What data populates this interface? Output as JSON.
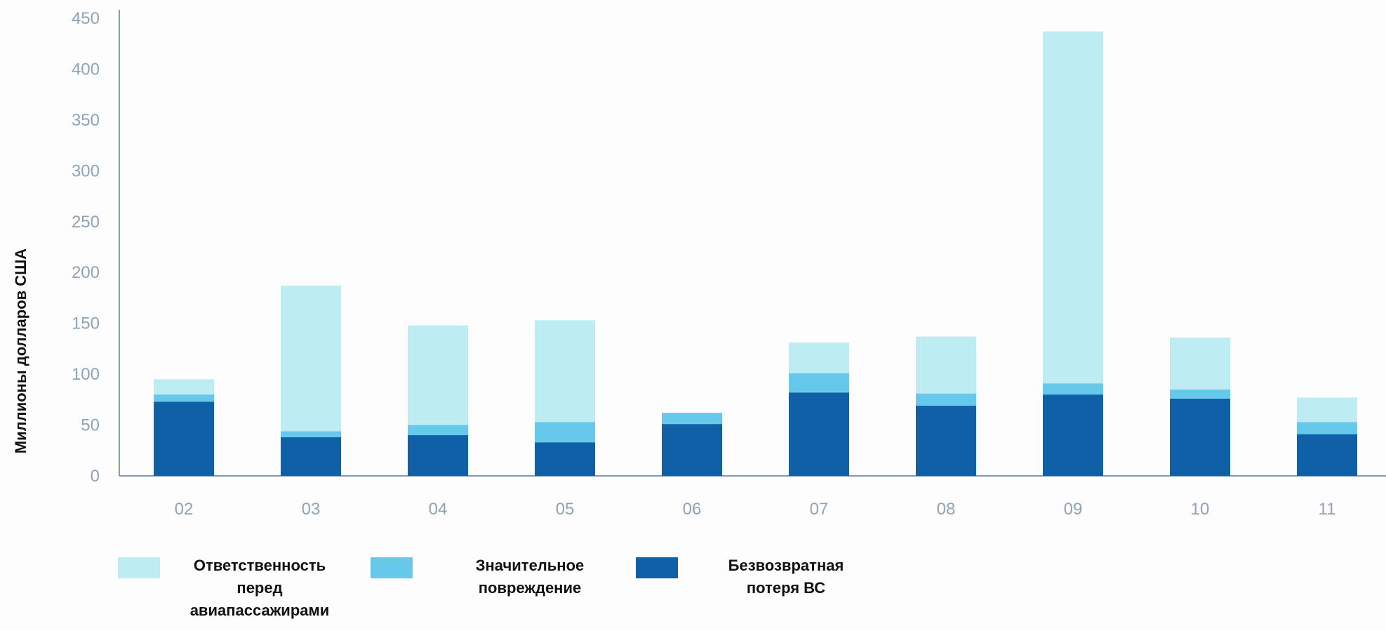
{
  "chart_data": {
    "type": "bar",
    "stacked": true,
    "ylabel": "Миллионы долларов США",
    "xlabel": "",
    "ylim": [
      0,
      450
    ],
    "yticks": [
      0,
      50,
      100,
      150,
      200,
      250,
      300,
      350,
      400,
      450
    ],
    "grid": false,
    "legend_position": "bottom",
    "categories": [
      "02",
      "03",
      "04",
      "05",
      "06",
      "07",
      "08",
      "09",
      "10",
      "11"
    ],
    "series": [
      {
        "name": "Безвозвратная потеря ВС",
        "color": "#1060a8",
        "values": [
          73,
          38,
          40,
          33,
          51,
          82,
          69,
          80,
          76,
          41
        ]
      },
      {
        "name": "Значительное повреждение",
        "color": "#66c9ec",
        "values": [
          7,
          6,
          10,
          20,
          11,
          19,
          12,
          11,
          9,
          12
        ]
      },
      {
        "name": "Ответственность перед авиапассажирами",
        "color": "#bdecf3",
        "values": [
          15,
          143,
          98,
          100,
          0,
          30,
          56,
          346,
          51,
          24
        ]
      }
    ]
  },
  "legend": [
    {
      "label": "Ответственность\nперед\nавиапассажирами",
      "color": "#bdecf3"
    },
    {
      "label": "Значительное\nповреждение",
      "color": "#66c9ec"
    },
    {
      "label": "Безвозвратная\nпотеря ВС",
      "color": "#1060a8"
    }
  ]
}
